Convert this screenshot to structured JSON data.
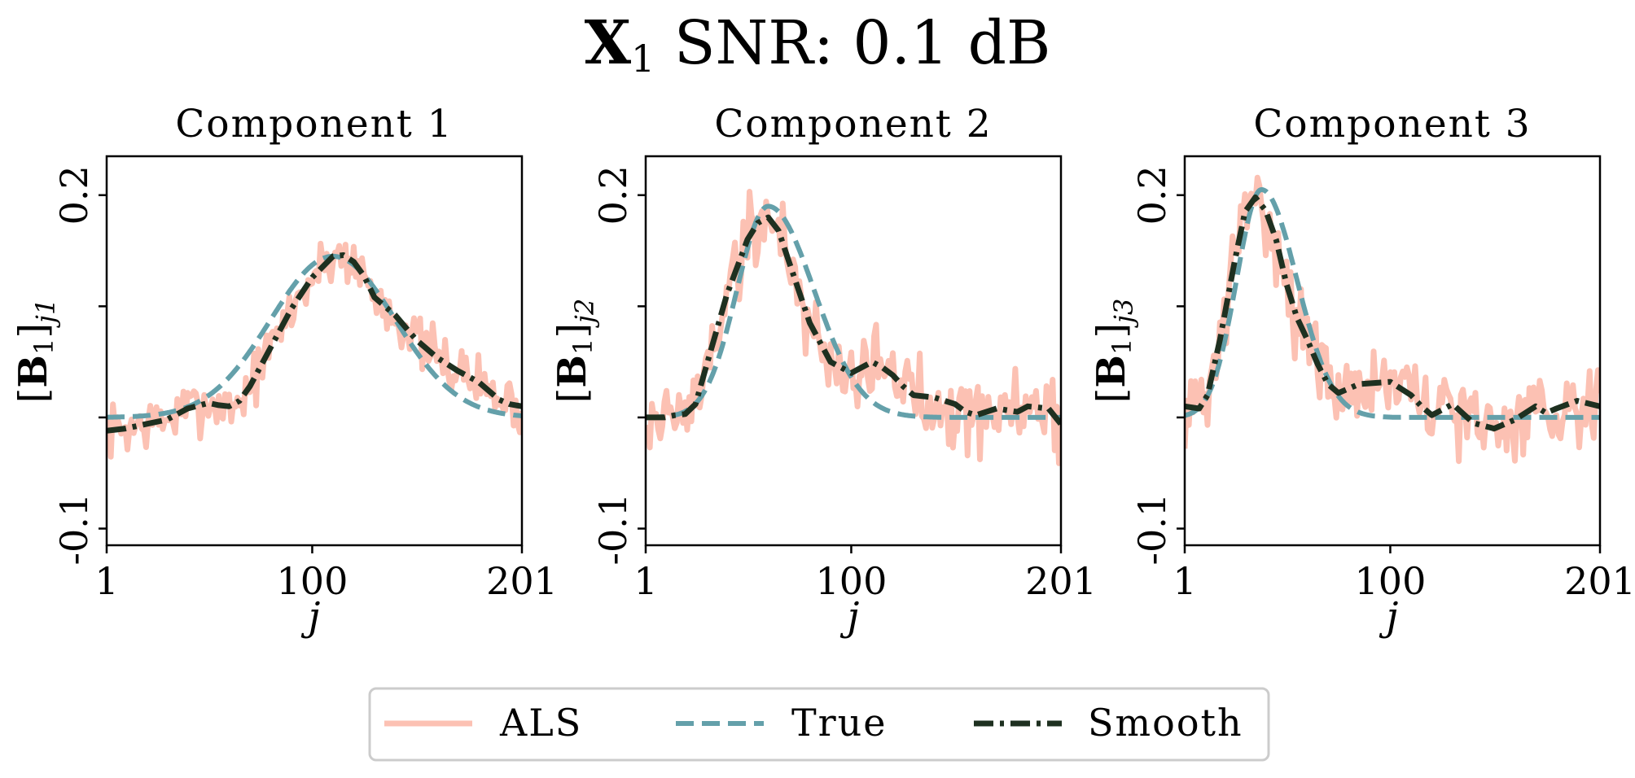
{
  "figure": {
    "title_main": "X",
    "title_sub": "1",
    "title_rest": " SNR: 0.1 dB"
  },
  "colors": {
    "als": "#fcc1b3",
    "true": "#64a0aa",
    "smooth": "#1e3020"
  },
  "chart_data": [
    {
      "type": "line",
      "title": "Component 1",
      "xlabel": "j",
      "ylabel_main": "B",
      "ylabel_sub1": "1",
      "ylabel_sub2": "j1",
      "xlim": [
        1,
        201
      ],
      "ylim": [
        -0.115,
        0.235
      ],
      "xticks": [
        1,
        100,
        201
      ],
      "xtick_labels": [
        "1",
        "100",
        "201"
      ],
      "yticks": [
        -0.1,
        0,
        0.1,
        0.2
      ],
      "ytick_labels": [
        "-0.1",
        "",
        "",
        "0.2"
      ],
      "true_curve": {
        "mu": 110,
        "sigma": 30,
        "amp": 0.145
      },
      "smooth_points": [
        [
          1,
          -0.012
        ],
        [
          10,
          -0.01
        ],
        [
          20,
          -0.006
        ],
        [
          30,
          -0.002
        ],
        [
          40,
          0.008
        ],
        [
          50,
          0.013
        ],
        [
          55,
          0.011
        ],
        [
          60,
          0.01
        ],
        [
          65,
          0.015
        ],
        [
          70,
          0.028
        ],
        [
          80,
          0.063
        ],
        [
          90,
          0.098
        ],
        [
          100,
          0.126
        ],
        [
          110,
          0.145
        ],
        [
          115,
          0.146
        ],
        [
          120,
          0.14
        ],
        [
          125,
          0.127
        ],
        [
          130,
          0.108
        ],
        [
          140,
          0.092
        ],
        [
          150,
          0.07
        ],
        [
          160,
          0.054
        ],
        [
          170,
          0.042
        ],
        [
          180,
          0.032
        ],
        [
          190,
          0.016
        ],
        [
          195,
          0.012
        ],
        [
          201,
          0.01
        ]
      ],
      "als_noise": 0.022,
      "als_seed": 7
    },
    {
      "type": "line",
      "title": "Component 2",
      "xlabel": "j",
      "ylabel_main": "B",
      "ylabel_sub1": "1",
      "ylabel_sub2": "j2",
      "xlim": [
        1,
        201
      ],
      "ylim": [
        -0.115,
        0.235
      ],
      "xticks": [
        1,
        100,
        201
      ],
      "xtick_labels": [
        "1",
        "100",
        "201"
      ],
      "yticks": [
        -0.1,
        0,
        0.1,
        0.2
      ],
      "ytick_labels": [
        "-0.1",
        "",
        "",
        "0.2"
      ],
      "true_curve": {
        "mu": 60,
        "sigma": 15,
        "sigma_right": 22,
        "amp": 0.19
      },
      "smooth_points": [
        [
          1,
          0.0
        ],
        [
          10,
          0.0
        ],
        [
          15,
          0.002
        ],
        [
          20,
          0.003
        ],
        [
          25,
          0.012
        ],
        [
          30,
          0.045
        ],
        [
          40,
          0.11
        ],
        [
          50,
          0.16
        ],
        [
          55,
          0.175
        ],
        [
          60,
          0.18
        ],
        [
          65,
          0.168
        ],
        [
          70,
          0.14
        ],
        [
          80,
          0.085
        ],
        [
          90,
          0.05
        ],
        [
          100,
          0.04
        ],
        [
          105,
          0.045
        ],
        [
          110,
          0.05
        ],
        [
          115,
          0.045
        ],
        [
          120,
          0.038
        ],
        [
          125,
          0.028
        ],
        [
          130,
          0.02
        ],
        [
          140,
          0.018
        ],
        [
          150,
          0.012
        ],
        [
          155,
          0.005
        ],
        [
          160,
          0.002
        ],
        [
          170,
          0.008
        ],
        [
          180,
          0.005
        ],
        [
          185,
          0.01
        ],
        [
          195,
          0.008
        ],
        [
          201,
          -0.006
        ]
      ],
      "als_noise": 0.034,
      "als_seed": 19
    },
    {
      "type": "line",
      "title": "Component 3",
      "xlabel": "j",
      "ylabel_main": "B",
      "ylabel_sub1": "1",
      "ylabel_sub2": "j3",
      "xlim": [
        1,
        201
      ],
      "ylim": [
        -0.115,
        0.235
      ],
      "xticks": [
        1,
        100,
        201
      ],
      "xtick_labels": [
        "1",
        "100",
        "201"
      ],
      "yticks": [
        -0.1,
        0,
        0.1,
        0.2
      ],
      "ytick_labels": [
        "-0.1",
        "",
        "",
        "0.2"
      ],
      "true_curve": {
        "mu": 38,
        "sigma": 12,
        "sigma_right": 17,
        "amp": 0.205
      },
      "smooth_points": [
        [
          1,
          0.01
        ],
        [
          8,
          0.008
        ],
        [
          12,
          0.02
        ],
        [
          18,
          0.07
        ],
        [
          25,
          0.14
        ],
        [
          30,
          0.185
        ],
        [
          35,
          0.198
        ],
        [
          40,
          0.186
        ],
        [
          45,
          0.16
        ],
        [
          50,
          0.12
        ],
        [
          55,
          0.09
        ],
        [
          60,
          0.07
        ],
        [
          65,
          0.048
        ],
        [
          70,
          0.03
        ],
        [
          75,
          0.022
        ],
        [
          85,
          0.03
        ],
        [
          100,
          0.032
        ],
        [
          110,
          0.02
        ],
        [
          115,
          0.01
        ],
        [
          120,
          0.002
        ],
        [
          130,
          0.012
        ],
        [
          140,
          -0.005
        ],
        [
          150,
          -0.01
        ],
        [
          160,
          -0.002
        ],
        [
          170,
          0.01
        ],
        [
          175,
          0.004
        ],
        [
          180,
          0.008
        ],
        [
          190,
          0.015
        ],
        [
          201,
          0.01
        ]
      ],
      "als_noise": 0.032,
      "als_seed": 31
    }
  ],
  "legend": {
    "items": [
      {
        "label": "ALS",
        "style": "solid"
      },
      {
        "label": "True",
        "style": "dashed"
      },
      {
        "label": "Smooth",
        "style": "dashdot"
      }
    ]
  }
}
